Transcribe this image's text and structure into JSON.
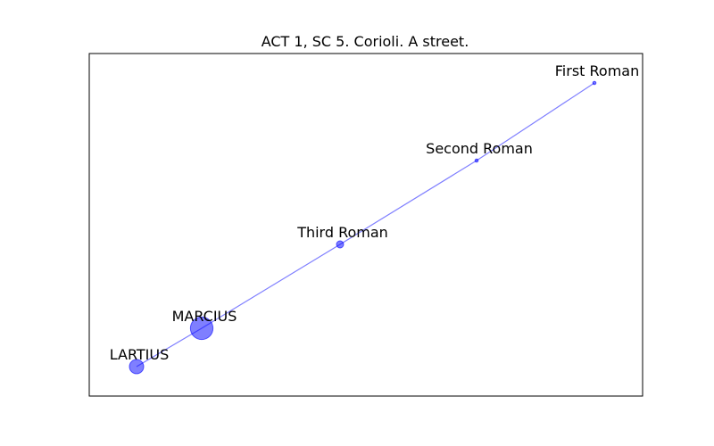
{
  "title": "ACT 1, SC 5. Corioli. A street.",
  "colors": {
    "node_fill": "#0000ff",
    "edge": "#0000ff",
    "frame": "#000000",
    "text": "#000000"
  },
  "chart_data": {
    "type": "network",
    "title": "ACT 1, SC 5. Corioli. A street.",
    "grid": false,
    "nodes": [
      {
        "id": "first-roman",
        "label": "First Roman",
        "weight": 0.2
      },
      {
        "id": "second-roman",
        "label": "Second Roman",
        "weight": 0.2
      },
      {
        "id": "third-roman",
        "label": "Third Roman",
        "weight": 1
      },
      {
        "id": "marcius",
        "label": "MARCIUS",
        "weight": 10
      },
      {
        "id": "lartius",
        "label": "LARTIUS",
        "weight": 4
      }
    ],
    "edges": [
      [
        "lartius",
        "marcius"
      ],
      [
        "marcius",
        "third-roman"
      ],
      [
        "third-roman",
        "second-roman"
      ],
      [
        "second-roman",
        "first-roman"
      ]
    ]
  }
}
